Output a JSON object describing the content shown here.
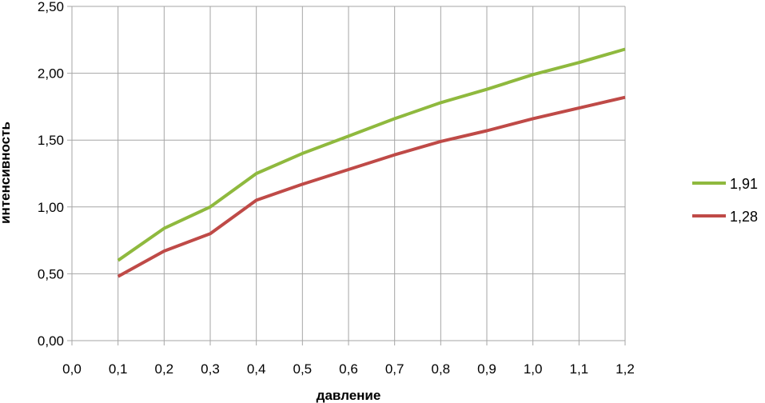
{
  "chart_data": {
    "type": "line",
    "xlabel": "давление",
    "ylabel": "интенсивность",
    "x_ticks": [
      "0,0",
      "0,1",
      "0,2",
      "0,3",
      "0,4",
      "0,5",
      "0,6",
      "0,7",
      "0,8",
      "0,9",
      "1,0",
      "1,1",
      "1,2"
    ],
    "y_ticks": [
      "0,00",
      "0,50",
      "1,00",
      "1,50",
      "2,00",
      "2,50"
    ],
    "x": [
      0.1,
      0.2,
      0.3,
      0.4,
      0.5,
      0.6,
      0.7,
      0.8,
      0.9,
      1.0,
      1.1,
      1.2
    ],
    "xlim": [
      0,
      1.2
    ],
    "ylim": [
      0,
      2.5
    ],
    "grid": true,
    "legend_position": "right",
    "series": [
      {
        "name": "1,91",
        "color": "#8fb93e",
        "values": [
          0.6,
          0.84,
          1.0,
          1.25,
          1.4,
          1.53,
          1.66,
          1.78,
          1.88,
          1.99,
          2.08,
          2.18
        ]
      },
      {
        "name": "1,28",
        "color": "#bf4a47",
        "values": [
          0.48,
          0.67,
          0.8,
          1.05,
          1.17,
          1.28,
          1.39,
          1.49,
          1.57,
          1.66,
          1.74,
          1.82
        ]
      }
    ]
  }
}
